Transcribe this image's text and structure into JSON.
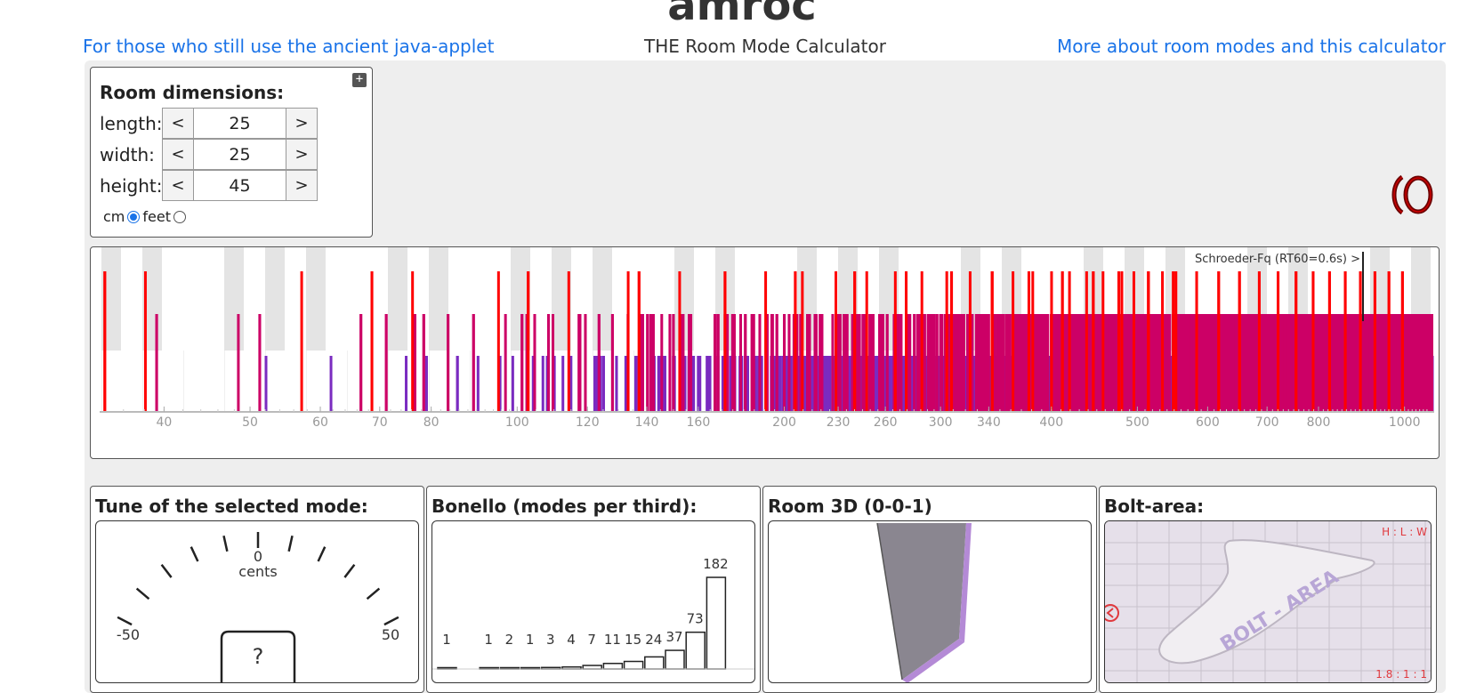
{
  "header": {
    "title": "amroc",
    "link_left": "For those who still use the ancient java-applet",
    "subtitle": "THE Room Mode Calculator",
    "link_right": "More about room modes and this calculator"
  },
  "dimensions": {
    "heading": "Room dimensions:",
    "expand_icon": "plus-square-icon",
    "dec_label": "<",
    "inc_label": ">",
    "rows": [
      {
        "label": "length:",
        "value": "25"
      },
      {
        "label": "width:",
        "value": "25"
      },
      {
        "label": "height:",
        "value": "45"
      }
    ],
    "unit_cm": "cm",
    "unit_feet": "feet",
    "selected_unit": "cm"
  },
  "spectrum": {
    "schroeder_label": "Schroeder-Fq (RT60=0.6s) >",
    "ticks": [
      "40",
      "50",
      "60",
      "70",
      "80",
      "100",
      "120",
      "140",
      "160",
      "200",
      "230",
      "260",
      "300",
      "340",
      "400",
      "500",
      "600",
      "700",
      "800",
      "1000"
    ],
    "colors": {
      "axial": "#ff0000",
      "tangential": "#cc0066",
      "oblique": "#7a2bc0"
    }
  },
  "tuner": {
    "title": "Tune of the selected mode:",
    "center": "0",
    "unit": "cents",
    "min": "-50",
    "max": "50",
    "readout": "?"
  },
  "bonello": {
    "title": "Bonello (modes per third):",
    "labels": [
      "1",
      "1",
      "2",
      "1",
      "3",
      "4",
      "7",
      "11",
      "15",
      "24",
      "37",
      "73",
      "182"
    ]
  },
  "room3d": {
    "title": "Room 3D (0-0-1)"
  },
  "bolt": {
    "title": "Bolt-area:",
    "ratio_label": "H : L : W",
    "ratio_value": "1.8 : 1 : 1",
    "stamp": "BOLT - AREA"
  }
}
